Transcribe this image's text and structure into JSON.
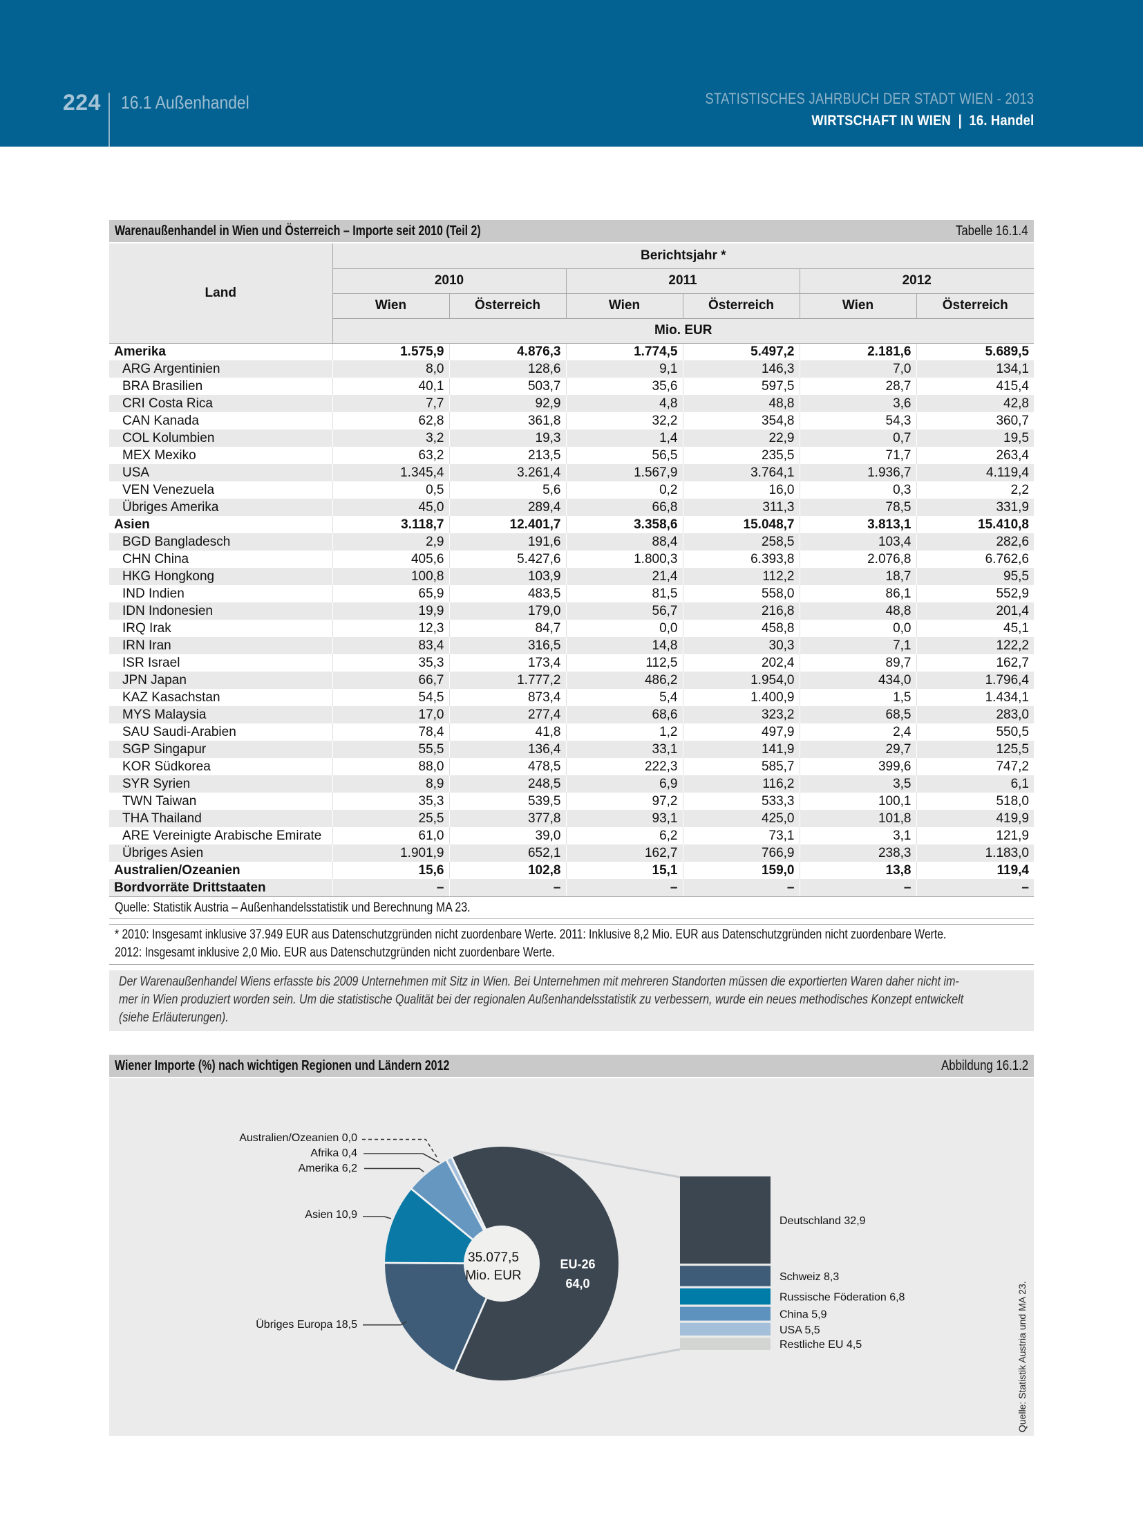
{
  "header": {
    "page_number": "224",
    "section": "16.1 Außenhandel",
    "book_title": "STATISTISCHES JAHRBUCH DER STADT WIEN - 2013",
    "chapter": "WIRTSCHAFT IN WIEN  |  16. Handel"
  },
  "table": {
    "title": "Warenaußenhandel in Wien und Österreich – Importe seit 2010 (Teil 2)",
    "ref": "Tabelle 16.1.4",
    "row_header": "Land",
    "col_group_header": "Berichtsjahr *",
    "years": [
      "2010",
      "2011",
      "2012"
    ],
    "subcols": [
      "Wien",
      "Österreich"
    ],
    "unit": "Mio. EUR",
    "rows": [
      {
        "label": "Amerika",
        "bold": true,
        "values": [
          "1.575,9",
          "4.876,3",
          "1.774,5",
          "5.497,2",
          "2.181,6",
          "5.689,5"
        ]
      },
      {
        "label": "ARG Argentinien",
        "bold": false,
        "values": [
          "8,0",
          "128,6",
          "9,1",
          "146,3",
          "7,0",
          "134,1"
        ]
      },
      {
        "label": "BRA Brasilien",
        "bold": false,
        "values": [
          "40,1",
          "503,7",
          "35,6",
          "597,5",
          "28,7",
          "415,4"
        ]
      },
      {
        "label": "CRI Costa Rica",
        "bold": false,
        "values": [
          "7,7",
          "92,9",
          "4,8",
          "48,8",
          "3,6",
          "42,8"
        ]
      },
      {
        "label": "CAN Kanada",
        "bold": false,
        "values": [
          "62,8",
          "361,8",
          "32,2",
          "354,8",
          "54,3",
          "360,7"
        ]
      },
      {
        "label": "COL Kolumbien",
        "bold": false,
        "values": [
          "3,2",
          "19,3",
          "1,4",
          "22,9",
          "0,7",
          "19,5"
        ]
      },
      {
        "label": "MEX Mexiko",
        "bold": false,
        "values": [
          "63,2",
          "213,5",
          "56,5",
          "235,5",
          "71,7",
          "263,4"
        ]
      },
      {
        "label": "USA",
        "bold": false,
        "values": [
          "1.345,4",
          "3.261,4",
          "1.567,9",
          "3.764,1",
          "1.936,7",
          "4.119,4"
        ]
      },
      {
        "label": "VEN Venezuela",
        "bold": false,
        "values": [
          "0,5",
          "5,6",
          "0,2",
          "16,0",
          "0,3",
          "2,2"
        ]
      },
      {
        "label": "Übriges Amerika",
        "bold": false,
        "values": [
          "45,0",
          "289,4",
          "66,8",
          "311,3",
          "78,5",
          "331,9"
        ]
      },
      {
        "label": "Asien",
        "bold": true,
        "values": [
          "3.118,7",
          "12.401,7",
          "3.358,6",
          "15.048,7",
          "3.813,1",
          "15.410,8"
        ]
      },
      {
        "label": "BGD Bangladesch",
        "bold": false,
        "values": [
          "2,9",
          "191,6",
          "88,4",
          "258,5",
          "103,4",
          "282,6"
        ]
      },
      {
        "label": "CHN China",
        "bold": false,
        "values": [
          "405,6",
          "5.427,6",
          "1.800,3",
          "6.393,8",
          "2.076,8",
          "6.762,6"
        ]
      },
      {
        "label": "HKG Hongkong",
        "bold": false,
        "values": [
          "100,8",
          "103,9",
          "21,4",
          "112,2",
          "18,7",
          "95,5"
        ]
      },
      {
        "label": "IND Indien",
        "bold": false,
        "values": [
          "65,9",
          "483,5",
          "81,5",
          "558,0",
          "86,1",
          "552,9"
        ]
      },
      {
        "label": "IDN Indonesien",
        "bold": false,
        "values": [
          "19,9",
          "179,0",
          "56,7",
          "216,8",
          "48,8",
          "201,4"
        ]
      },
      {
        "label": "IRQ Irak",
        "bold": false,
        "values": [
          "12,3",
          "84,7",
          "0,0",
          "458,8",
          "0,0",
          "45,1"
        ]
      },
      {
        "label": "IRN Iran",
        "bold": false,
        "values": [
          "83,4",
          "316,5",
          "14,8",
          "30,3",
          "7,1",
          "122,2"
        ]
      },
      {
        "label": "ISR Israel",
        "bold": false,
        "values": [
          "35,3",
          "173,4",
          "112,5",
          "202,4",
          "89,7",
          "162,7"
        ]
      },
      {
        "label": "JPN Japan",
        "bold": false,
        "values": [
          "66,7",
          "1.777,2",
          "486,2",
          "1.954,0",
          "434,0",
          "1.796,4"
        ]
      },
      {
        "label": "KAZ Kasachstan",
        "bold": false,
        "values": [
          "54,5",
          "873,4",
          "5,4",
          "1.400,9",
          "1,5",
          "1.434,1"
        ]
      },
      {
        "label": "MYS Malaysia",
        "bold": false,
        "values": [
          "17,0",
          "277,4",
          "68,6",
          "323,2",
          "68,5",
          "283,0"
        ]
      },
      {
        "label": "SAU Saudi-Arabien",
        "bold": false,
        "values": [
          "78,4",
          "41,8",
          "1,2",
          "497,9",
          "2,4",
          "550,5"
        ]
      },
      {
        "label": "SGP Singapur",
        "bold": false,
        "values": [
          "55,5",
          "136,4",
          "33,1",
          "141,9",
          "29,7",
          "125,5"
        ]
      },
      {
        "label": "KOR Südkorea",
        "bold": false,
        "values": [
          "88,0",
          "478,5",
          "222,3",
          "585,7",
          "399,6",
          "747,2"
        ]
      },
      {
        "label": "SYR Syrien",
        "bold": false,
        "values": [
          "8,9",
          "248,5",
          "6,9",
          "116,2",
          "3,5",
          "6,1"
        ]
      },
      {
        "label": "TWN Taiwan",
        "bold": false,
        "values": [
          "35,3",
          "539,5",
          "97,2",
          "533,3",
          "100,1",
          "518,0"
        ]
      },
      {
        "label": "THA Thailand",
        "bold": false,
        "values": [
          "25,5",
          "377,8",
          "93,1",
          "425,0",
          "101,8",
          "419,9"
        ]
      },
      {
        "label": "ARE Vereinigte Arabische Emirate",
        "bold": false,
        "values": [
          "61,0",
          "39,0",
          "6,2",
          "73,1",
          "3,1",
          "121,9"
        ]
      },
      {
        "label": "Übriges Asien",
        "bold": false,
        "values": [
          "1.901,9",
          "652,1",
          "162,7",
          "766,9",
          "238,3",
          "1.183,0"
        ]
      },
      {
        "label": "Australien/Ozeanien",
        "bold": true,
        "values": [
          "15,6",
          "102,8",
          "15,1",
          "159,0",
          "13,8",
          "119,4"
        ]
      },
      {
        "label": "Bordvorräte Drittstaaten",
        "bold": true,
        "values": [
          "–",
          "–",
          "–",
          "–",
          "–",
          "–"
        ]
      }
    ],
    "source": "Quelle: Statistik Austria – Außenhandelsstatistik und Berechnung MA 23.",
    "footnote": "* 2010: Insgesamt inklusive 37.949 EUR aus Datenschutzgründen nicht zuordenbare Werte. 2011: Inklusive 8,2 Mio. EUR aus Datenschutzgründen nicht zuordenbare Werte.\n2012: Insgesamt inklusive 2,0 Mio. EUR aus Datenschutzgründen nicht zuordenbare Werte.",
    "note": "Der Warenaußenhandel Wiens erfasste bis 2009 Unternehmen mit Sitz in Wien. Bei Unternehmen mit mehreren Standorten müssen die exportierten Waren daher nicht im-\nmer in Wien produziert worden sein. Um die statistische Qualität bei der regionalen Außenhandelsstatistik zu verbessern, wurde ein neues methodisches Konzept entwickelt\n(siehe Erläuterungen)."
  },
  "chart": {
    "title": "Wiener Importe (%) nach wichtigen Regionen und Ländern 2012",
    "ref": "Abbildung 16.1.2",
    "source_vertical": "Quelle: Statistik Austria und MA 23."
  },
  "chart_data": {
    "type": "pie",
    "title": "Wiener Importe (%) nach wichtigen Regionen und Ländern 2012",
    "center_label": [
      "35.077,5",
      "Mio. EUR"
    ],
    "inner_label": [
      "EU-26",
      "64,0"
    ],
    "slices": [
      {
        "label": "EU-26",
        "value": 64.0,
        "color": "#3b4650"
      },
      {
        "label": "Übriges Europa",
        "value": 18.5,
        "color": "#3e5c77"
      },
      {
        "label": "Asien",
        "value": 10.9,
        "color": "#0b79a5"
      },
      {
        "label": "Amerika",
        "value": 6.2,
        "color": "#6697c1"
      },
      {
        "label": "Afrika",
        "value": 0.4,
        "color": "#a5bfda"
      },
      {
        "label": "Australien/Ozeanien",
        "value": 0.0,
        "color": "#d3d5d3"
      }
    ],
    "bar_breakdown": [
      {
        "label": "Deutschland",
        "value": 32.9,
        "color": "#3b4650"
      },
      {
        "label": "Schweiz",
        "value": 8.3,
        "color": "#3e5c77"
      },
      {
        "label": "Russische Föderation",
        "value": 6.8,
        "color": "#007ca8"
      },
      {
        "label": "China",
        "value": 5.9,
        "color": "#5e92be"
      },
      {
        "label": "USA",
        "value": 5.5,
        "color": "#a3bfd9"
      },
      {
        "label": "Restliche EU",
        "value": 4.5,
        "color": "#d3d5d3"
      }
    ],
    "legend_position": "right",
    "grid": false
  }
}
